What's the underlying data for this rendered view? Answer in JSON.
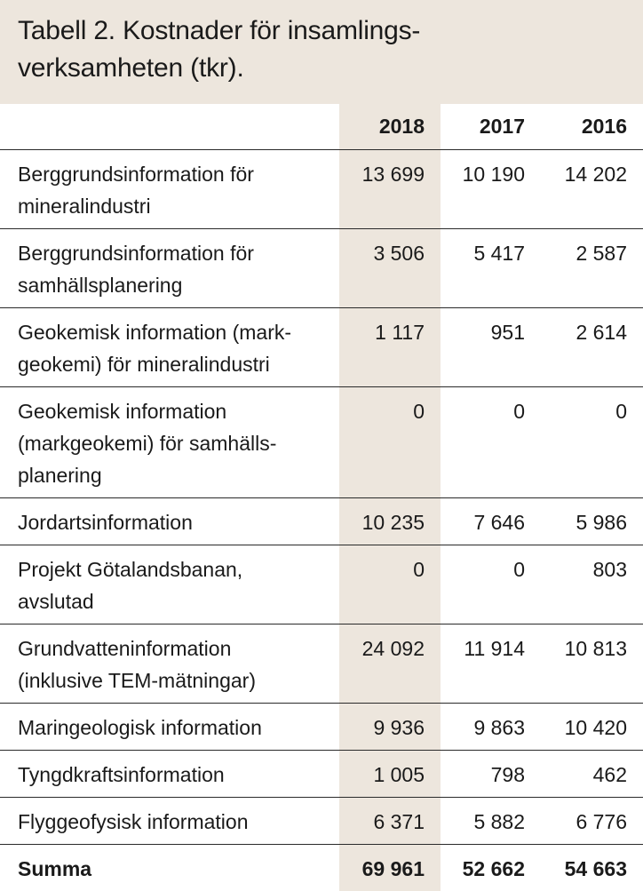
{
  "table": {
    "title": "Tabell 2. Kostnader för insamlings-verksamheten (tkr).",
    "title_line1": "Tabell 2. Kostnader för insamlings-",
    "title_line2": "verksamheten (tkr).",
    "columns": [
      "",
      "2018",
      "2017",
      "2016"
    ],
    "rows": [
      {
        "label_lines": [
          "Berggrundsinformation för",
          "mineralindustri"
        ],
        "values": [
          "13 699",
          "10 190",
          "14 202"
        ]
      },
      {
        "label_lines": [
          "Berggrundsinformation för",
          "samhällsplanering"
        ],
        "values": [
          "3 506",
          "5 417",
          "2 587"
        ]
      },
      {
        "label_lines": [
          "Geokemisk information (mark-",
          "geokemi) för mineralindustri"
        ],
        "values": [
          "1 117",
          "951",
          "2 614"
        ]
      },
      {
        "label_lines": [
          "Geokemisk information",
          "(markgeokemi) för samhälls-",
          "planering"
        ],
        "values": [
          "0",
          "0",
          "0"
        ]
      },
      {
        "label_lines": [
          "Jordartsinformation"
        ],
        "values": [
          "10 235",
          "7 646",
          "5 986"
        ]
      },
      {
        "label_lines": [
          "Projekt Götalandsbanan,",
          "avslutad"
        ],
        "values": [
          "0",
          "0",
          "803"
        ]
      },
      {
        "label_lines": [
          "Grundvatteninformation",
          "(inklusive TEM-mätningar)"
        ],
        "values": [
          "24 092",
          "11 914",
          "10 813"
        ]
      },
      {
        "label_lines": [
          "Maringeologisk information"
        ],
        "values": [
          "9 936",
          "9 863",
          "10 420"
        ]
      },
      {
        "label_lines": [
          "Tyngdkraftsinformation"
        ],
        "values": [
          "1 005",
          "798",
          "462"
        ]
      },
      {
        "label_lines": [
          "Flyggeofysisk information"
        ],
        "values": [
          "6 371",
          "5 882",
          "6 776"
        ]
      }
    ],
    "total": {
      "label": "Summa",
      "values": [
        "69 961",
        "52 662",
        "54 663"
      ]
    }
  },
  "colors": {
    "highlight": "#ede6dd",
    "rule": "#2a2a2a",
    "text": "#1a1a1a"
  }
}
